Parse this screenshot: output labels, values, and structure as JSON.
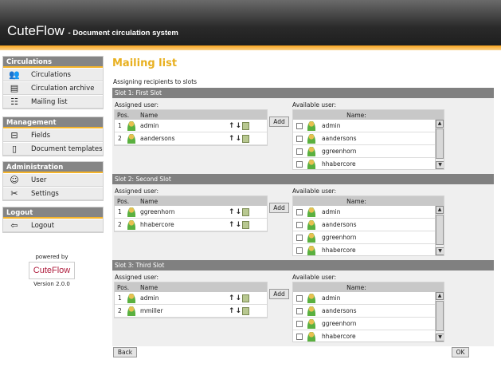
{
  "header": {
    "app": "CuteFlow",
    "subtitle": "- Document circulation system"
  },
  "sidebar": [
    {
      "title": "Circulations",
      "items": [
        {
          "label": "Circulations",
          "icon": "circulations-icon"
        },
        {
          "label": "Circulation archive",
          "icon": "archive-icon"
        },
        {
          "label": "Mailing list",
          "icon": "mailing-list-icon"
        }
      ]
    },
    {
      "title": "Management",
      "items": [
        {
          "label": "Fields",
          "icon": "fields-icon"
        },
        {
          "label": "Document templates",
          "icon": "template-icon"
        }
      ]
    },
    {
      "title": "Administration",
      "items": [
        {
          "label": "User",
          "icon": "user-icon"
        },
        {
          "label": "Settings",
          "icon": "settings-icon"
        }
      ]
    },
    {
      "title": "Logout",
      "items": [
        {
          "label": "Logout",
          "icon": "logout-icon"
        }
      ]
    }
  ],
  "powered": {
    "by": "powered by",
    "logo": "CuteFlow",
    "version": "Version 2.0.0"
  },
  "main": {
    "title": "Mailing list",
    "subtitle": "Assigning recipients to slots",
    "assigned_label": "Assigned user:",
    "available_label": "Available user:",
    "pos_header": "Pos.",
    "name_header": "Name",
    "avail_name_header": "Name:",
    "add": "Add",
    "slots": [
      {
        "title": "Slot 1: First Slot",
        "assigned": [
          {
            "pos": "1",
            "name": "admin"
          },
          {
            "pos": "2",
            "name": "aandersons"
          }
        ],
        "available": [
          "admin",
          "aandersons",
          "ggreenhorn",
          "hhabercore"
        ]
      },
      {
        "title": "Slot 2: Second Slot",
        "assigned": [
          {
            "pos": "1",
            "name": "ggreenhorn"
          },
          {
            "pos": "2",
            "name": "hhabercore"
          }
        ],
        "available": [
          "admin",
          "aandersons",
          "ggreenhorn",
          "hhabercore"
        ]
      },
      {
        "title": "Slot 3: Third Slot",
        "assigned": [
          {
            "pos": "1",
            "name": "admin"
          },
          {
            "pos": "2",
            "name": "mmiller"
          }
        ],
        "available": [
          "admin",
          "aandersons",
          "ggreenhorn",
          "hhabercore"
        ]
      }
    ],
    "back": "Back",
    "ok": "OK"
  },
  "colors": {
    "accent": "#f5a623",
    "title": "#e8b020",
    "slot_header": "#808080"
  }
}
